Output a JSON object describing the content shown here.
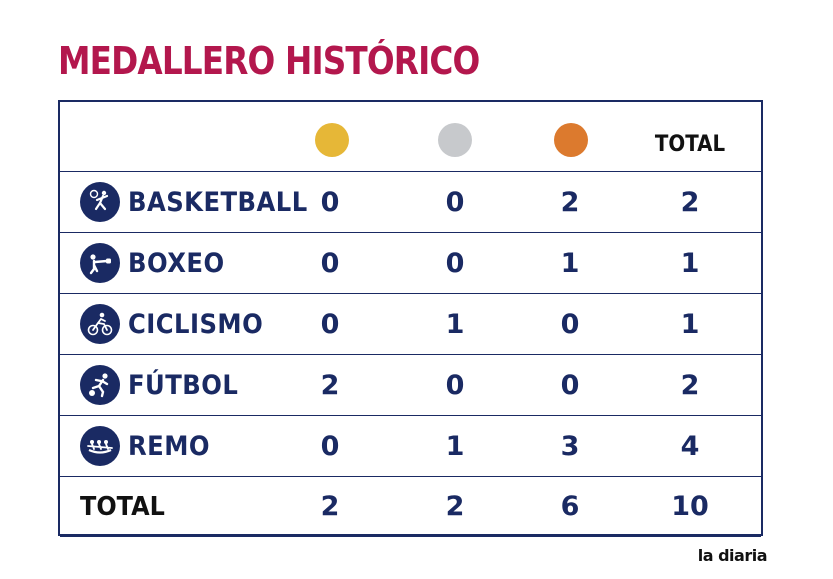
{
  "title": "MEDALLERO HISTÓRICO",
  "header": {
    "total_label": "TOTAL",
    "medal_colors": {
      "gold": "#e6b737",
      "silver": "#c7c9cc",
      "bronze": "#dc7a2e"
    }
  },
  "rows": [
    {
      "name": "BASKETBALL",
      "icon": "basketball-icon",
      "gold": "0",
      "silver": "0",
      "bronze": "2",
      "total": "2"
    },
    {
      "name": "BOXEO",
      "icon": "boxing-icon",
      "gold": "0",
      "silver": "0",
      "bronze": "1",
      "total": "1"
    },
    {
      "name": "CICLISMO",
      "icon": "cycling-icon",
      "gold": "0",
      "silver": "1",
      "bronze": "0",
      "total": "1"
    },
    {
      "name": "FÚTBOL",
      "icon": "football-icon",
      "gold": "2",
      "silver": "0",
      "bronze": "0",
      "total": "2"
    },
    {
      "name": "REMO",
      "icon": "rowing-icon",
      "gold": "0",
      "silver": "1",
      "bronze": "3",
      "total": "4"
    }
  ],
  "totals": {
    "label": "TOTAL",
    "gold": "2",
    "silver": "2",
    "bronze": "6",
    "total": "10"
  },
  "brand": "la diaria",
  "colors": {
    "title": "#b3174d",
    "navy": "#1a2a63"
  }
}
